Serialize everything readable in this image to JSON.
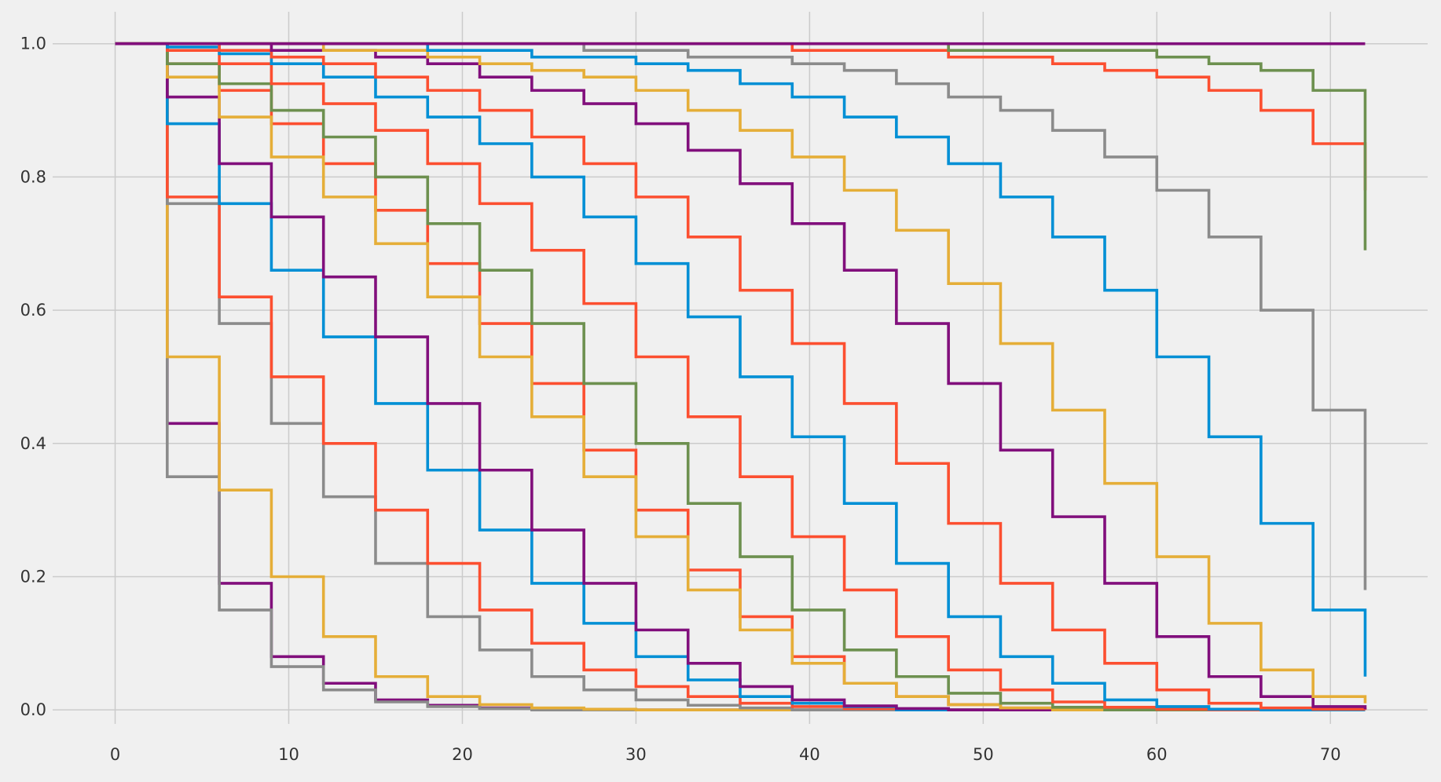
{
  "chart_data": {
    "type": "step",
    "x": [
      0,
      3,
      6,
      9,
      12,
      15,
      18,
      21,
      24,
      27,
      30,
      33,
      36,
      39,
      42,
      45,
      48,
      51,
      54,
      57,
      60,
      63,
      66,
      69,
      72
    ],
    "xlim": [
      -3.6,
      75.6
    ],
    "xticks": [
      0,
      10,
      20,
      30,
      40,
      50,
      60,
      70
    ],
    "ylim": [
      -0.021,
      1.048
    ],
    "yticks": [
      {
        "value": 0,
        "label": "0.0"
      },
      {
        "value": 0.2,
        "label": "0.2"
      },
      {
        "value": 0.4,
        "label": "0.4"
      },
      {
        "value": 0.6,
        "label": "0.6"
      },
      {
        "value": 0.8,
        "label": "0.8"
      },
      {
        "value": 1,
        "label": "1.0"
      }
    ],
    "grid": true,
    "series": [
      {
        "color": "#810f7c",
        "values": [
          1,
          0.43,
          0.19,
          0.08,
          0.04,
          0.015,
          0.007,
          0.003,
          0.001,
          0,
          0,
          0,
          0,
          0,
          0,
          0,
          0,
          0,
          0,
          0,
          0,
          0,
          0,
          0,
          0
        ]
      },
      {
        "color": "#8b8b8b",
        "values": [
          1,
          0.35,
          0.15,
          0.065,
          0.03,
          0.012,
          0.005,
          0.002,
          0,
          0,
          0,
          0,
          0,
          0,
          0,
          0,
          0,
          0,
          0,
          0,
          0,
          0,
          0,
          0,
          0
        ]
      },
      {
        "color": "#e5ae38",
        "values": [
          1,
          0.53,
          0.33,
          0.2,
          0.11,
          0.05,
          0.02,
          0.008,
          0.003,
          0.001,
          0,
          0,
          0,
          0,
          0,
          0,
          0,
          0,
          0,
          0,
          0,
          0,
          0,
          0,
          0
        ]
      },
      {
        "color": "#8b8b8b",
        "values": [
          1,
          0.76,
          0.58,
          0.43,
          0.32,
          0.22,
          0.14,
          0.09,
          0.05,
          0.03,
          0.015,
          0.007,
          0.003,
          0,
          0,
          0,
          0,
          0,
          0,
          0,
          0,
          0,
          0,
          0,
          0
        ]
      },
      {
        "color": "#fc4f30",
        "values": [
          1,
          0.77,
          0.62,
          0.5,
          0.4,
          0.3,
          0.22,
          0.15,
          0.1,
          0.06,
          0.035,
          0.02,
          0.01,
          0.005,
          0.002,
          0,
          0,
          0,
          0,
          0,
          0,
          0,
          0,
          0,
          0
        ]
      },
      {
        "color": "#008fd5",
        "values": [
          1,
          0.88,
          0.76,
          0.66,
          0.56,
          0.46,
          0.36,
          0.27,
          0.19,
          0.13,
          0.08,
          0.045,
          0.02,
          0.01,
          0.005,
          0,
          0,
          0,
          0,
          0,
          0,
          0,
          0,
          0,
          0
        ]
      },
      {
        "color": "#810f7c",
        "values": [
          1,
          0.92,
          0.82,
          0.74,
          0.65,
          0.56,
          0.46,
          0.36,
          0.27,
          0.19,
          0.12,
          0.07,
          0.035,
          0.015,
          0.006,
          0.002,
          0,
          0,
          0,
          0,
          0,
          0,
          0,
          0,
          0
        ]
      },
      {
        "color": "#fc4f30",
        "values": [
          1,
          0.97,
          0.93,
          0.88,
          0.82,
          0.75,
          0.67,
          0.58,
          0.49,
          0.39,
          0.3,
          0.21,
          0.14,
          0.08,
          0.04,
          0.02,
          0.008,
          0.003,
          0,
          0,
          0,
          0,
          0,
          0,
          0
        ]
      },
      {
        "color": "#e5ae38",
        "values": [
          1,
          0.95,
          0.89,
          0.83,
          0.77,
          0.7,
          0.62,
          0.53,
          0.44,
          0.35,
          0.26,
          0.18,
          0.12,
          0.07,
          0.04,
          0.02,
          0.008,
          0.003,
          0,
          0,
          0,
          0,
          0,
          0,
          0
        ]
      },
      {
        "color": "#6d904f",
        "values": [
          1,
          0.97,
          0.94,
          0.9,
          0.86,
          0.8,
          0.73,
          0.66,
          0.58,
          0.49,
          0.4,
          0.31,
          0.23,
          0.15,
          0.09,
          0.05,
          0.025,
          0.01,
          0.004,
          0,
          0,
          0,
          0,
          0,
          0
        ]
      },
      {
        "color": "#fc4f30",
        "values": [
          1,
          0.99,
          0.97,
          0.94,
          0.91,
          0.87,
          0.82,
          0.76,
          0.69,
          0.61,
          0.53,
          0.44,
          0.35,
          0.26,
          0.18,
          0.11,
          0.06,
          0.03,
          0.012,
          0.004,
          0.001,
          0,
          0,
          0,
          0
        ]
      },
      {
        "color": "#008fd5",
        "values": [
          1,
          0.995,
          0.985,
          0.97,
          0.95,
          0.92,
          0.89,
          0.85,
          0.8,
          0.74,
          0.67,
          0.59,
          0.5,
          0.41,
          0.31,
          0.22,
          0.14,
          0.08,
          0.04,
          0.015,
          0.005,
          0.001,
          0,
          0,
          0
        ]
      },
      {
        "color": "#fc4f30",
        "values": [
          1,
          1,
          0.99,
          0.98,
          0.97,
          0.95,
          0.93,
          0.9,
          0.86,
          0.82,
          0.77,
          0.71,
          0.63,
          0.55,
          0.46,
          0.37,
          0.28,
          0.19,
          0.12,
          0.07,
          0.03,
          0.01,
          0.003,
          0.001,
          0
        ]
      },
      {
        "color": "#810f7c",
        "values": [
          1,
          1,
          1,
          0.99,
          0.99,
          0.98,
          0.97,
          0.95,
          0.93,
          0.91,
          0.88,
          0.84,
          0.79,
          0.73,
          0.66,
          0.58,
          0.49,
          0.39,
          0.29,
          0.19,
          0.11,
          0.05,
          0.02,
          0.005,
          0.001
        ]
      },
      {
        "color": "#e5ae38",
        "values": [
          1,
          1,
          1,
          1,
          0.99,
          0.99,
          0.98,
          0.97,
          0.96,
          0.95,
          0.93,
          0.9,
          0.87,
          0.83,
          0.78,
          0.72,
          0.64,
          0.55,
          0.45,
          0.34,
          0.23,
          0.13,
          0.06,
          0.02,
          0.01
        ]
      },
      {
        "color": "#008fd5",
        "values": [
          1,
          1,
          1,
          1,
          1,
          1,
          0.99,
          0.99,
          0.98,
          0.98,
          0.97,
          0.96,
          0.94,
          0.92,
          0.89,
          0.86,
          0.82,
          0.77,
          0.71,
          0.63,
          0.53,
          0.41,
          0.28,
          0.15,
          0.05
        ]
      },
      {
        "color": "#8b8b8b",
        "values": [
          1,
          1,
          1,
          1,
          1,
          1,
          1,
          1,
          1,
          0.99,
          0.99,
          0.98,
          0.98,
          0.97,
          0.96,
          0.94,
          0.92,
          0.9,
          0.87,
          0.83,
          0.78,
          0.71,
          0.6,
          0.45,
          0.18
        ]
      },
      {
        "color": "#fc4f30",
        "values": [
          1,
          1,
          1,
          1,
          1,
          1,
          1,
          1,
          1,
          1,
          1,
          1,
          1,
          0.99,
          0.99,
          0.99,
          0.98,
          0.98,
          0.97,
          0.96,
          0.95,
          0.93,
          0.9,
          0.85,
          0.78
        ]
      },
      {
        "color": "#6d904f",
        "values": [
          1,
          1,
          1,
          1,
          1,
          1,
          1,
          1,
          1,
          1,
          1,
          1,
          1,
          1,
          1,
          1,
          0.99,
          0.99,
          0.99,
          0.99,
          0.98,
          0.97,
          0.96,
          0.93,
          0.69
        ]
      },
      {
        "color": "#810f7c",
        "values": [
          1,
          1,
          1,
          1,
          1,
          1,
          1,
          1,
          1,
          1,
          1,
          1,
          1,
          1,
          1,
          1,
          1,
          1,
          1,
          1,
          1,
          1,
          1,
          1,
          1
        ]
      }
    ]
  }
}
